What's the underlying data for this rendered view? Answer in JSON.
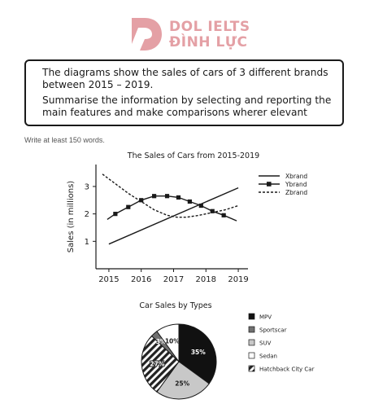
{
  "logo": {
    "line1": "DOL IELTS",
    "line2": "ĐÌNH LỰC",
    "color": "#e4a0a5"
  },
  "prompt": {
    "line1": "The diagrams show the sales of cars of 3 different brands between 2015 – 2019.",
    "line2": "Summarise the information by selecting and reporting the main features and make comparisons wherer elevant"
  },
  "note": "Write at least 150 words.",
  "chart_data": [
    {
      "type": "line",
      "title": "The Sales of Cars from 2015-2019",
      "ylabel": "Sales (in millions)",
      "xlabel": "",
      "x_ticks": [
        "2015",
        "2016",
        "2017",
        "2018",
        "2019"
      ],
      "y_ticks": [
        "1",
        "2",
        "3"
      ],
      "xlim": [
        2014.6,
        2019.3
      ],
      "ylim": [
        0,
        3.8
      ],
      "legend_position": "top-right",
      "series": [
        {
          "name": "Xbrand",
          "style": "solid",
          "marker": false,
          "x": [
            2015,
            2019
          ],
          "y": [
            0.9,
            2.95
          ]
        },
        {
          "name": "Ybrand",
          "style": "solid",
          "marker": true,
          "x": [
            2014.95,
            2015.2,
            2015.6,
            2016.0,
            2016.4,
            2016.8,
            2017.15,
            2017.5,
            2017.85,
            2018.2,
            2018.55,
            2018.95
          ],
          "y": [
            1.8,
            2.0,
            2.25,
            2.5,
            2.65,
            2.65,
            2.6,
            2.45,
            2.3,
            2.1,
            1.95,
            1.75
          ],
          "markers_x": [
            2015.2,
            2015.6,
            2016.0,
            2016.4,
            2016.8,
            2017.15,
            2017.5,
            2017.85,
            2018.2,
            2018.55
          ],
          "markers_y": [
            2.0,
            2.25,
            2.5,
            2.65,
            2.65,
            2.6,
            2.45,
            2.3,
            2.1,
            1.95
          ]
        },
        {
          "name": "Zbrand",
          "style": "dashed",
          "marker": false,
          "x": [
            2014.8,
            2015.2,
            2015.6,
            2016.0,
            2016.4,
            2016.8,
            2017.1,
            2017.4,
            2017.8,
            2018.2,
            2018.6,
            2019.0
          ],
          "y": [
            3.45,
            3.1,
            2.75,
            2.45,
            2.15,
            1.95,
            1.88,
            1.88,
            1.95,
            2.05,
            2.15,
            2.3
          ]
        }
      ]
    },
    {
      "type": "pie",
      "title": "Car Sales by Types",
      "legend_position": "right",
      "slices": [
        {
          "label": "MPV",
          "value": 35,
          "value_label": "35%",
          "fill": "#111111",
          "pattern": "solid",
          "text_color": "#ffffff"
        },
        {
          "label": "SUV",
          "value": 25,
          "value_label": "25%",
          "fill": "#c8c8c8",
          "pattern": "solid",
          "text_color": "#1a1a1a"
        },
        {
          "label": "Hatchback City Car",
          "value": 27,
          "value_label": "27%",
          "fill": "#333333",
          "pattern": "hatch",
          "text_color": "#ffffff"
        },
        {
          "label": "Sportscar",
          "value": 3,
          "value_label": "3%",
          "fill": "#707070",
          "pattern": "solid",
          "text_color": "#ffffff"
        },
        {
          "label": "Sedan",
          "value": 10,
          "value_label": "10%",
          "fill": "#ffffff",
          "pattern": "solid",
          "text_color": "#1a1a1a"
        }
      ],
      "legend_order": [
        "MPV",
        "Sportscar",
        "SUV",
        "Sedan",
        "Hatchback City Car"
      ]
    }
  ]
}
